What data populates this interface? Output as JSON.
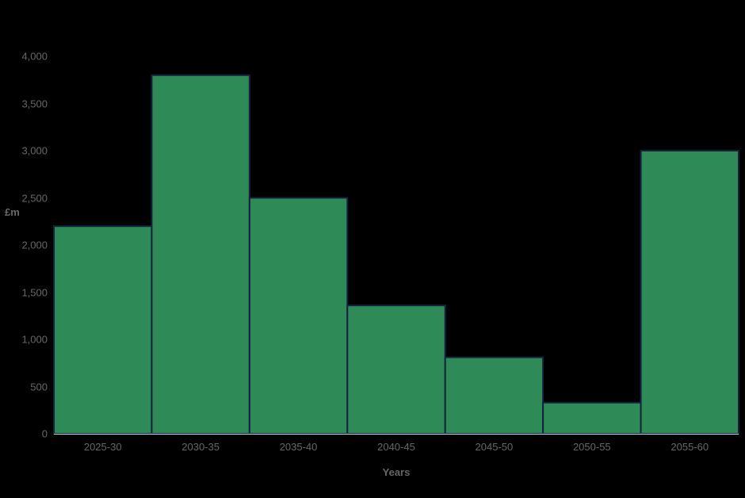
{
  "chart_data": {
    "type": "bar",
    "title": "",
    "categories": [
      "2025-30",
      "2030-35",
      "2035-40",
      "2040-45",
      "2045-50",
      "2050-55",
      "2055-60"
    ],
    "values": [
      2200,
      3800,
      2500,
      1360,
      810,
      330,
      3000
    ],
    "xlabel": "Years",
    "ylabel": "£m",
    "ylim": [
      0,
      4000
    ],
    "ytick_interval": 500,
    "ytick_labels": [
      "0",
      "500",
      "1,000",
      "1,500",
      "2,000",
      "2,500",
      "3,000",
      "3,500",
      "4,000"
    ],
    "bar_fill": "#2e8b57",
    "bar_stroke": "#16213e",
    "background": "#000000",
    "text_color": "#666666",
    "axis_line_color": "#ccd6eb",
    "legend": "off",
    "grid": "off"
  }
}
